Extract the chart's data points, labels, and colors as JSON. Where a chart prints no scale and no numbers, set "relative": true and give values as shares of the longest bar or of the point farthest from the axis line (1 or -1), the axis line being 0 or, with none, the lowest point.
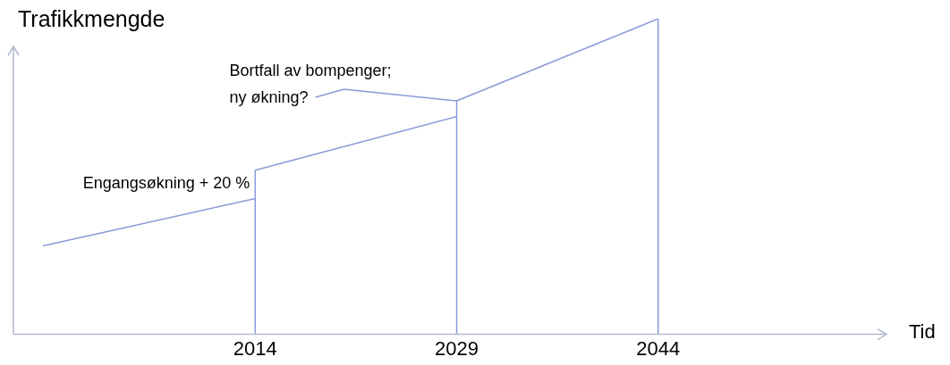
{
  "chart_data": {
    "type": "line",
    "relative": true,
    "xlabel": "Tid",
    "ylabel": "Trafikkmengde",
    "xlim": [
      1996,
      2061
    ],
    "xticks": [
      2014,
      2029,
      2044
    ],
    "series": [
      {
        "color": "#8a9ad8",
        "x": [
          1998.2,
          2014,
          2014,
          2014,
          2029,
          2029,
          2029,
          2044,
          2044
        ],
        "values": [
          0.28,
          0.43,
          0,
          0.52,
          0.69,
          0,
          0.74,
          1,
          0
        ]
      }
    ],
    "marker": "none",
    "grid": false,
    "legend": false,
    "annotations": [
      {
        "text": "Engangsøkning + 20 %",
        "x": 2014,
        "y": 0.43
      },
      {
        "text": "Bortfall av bompenger;\nny økning?",
        "x": 2029,
        "y": 0.74
      }
    ]
  }
}
